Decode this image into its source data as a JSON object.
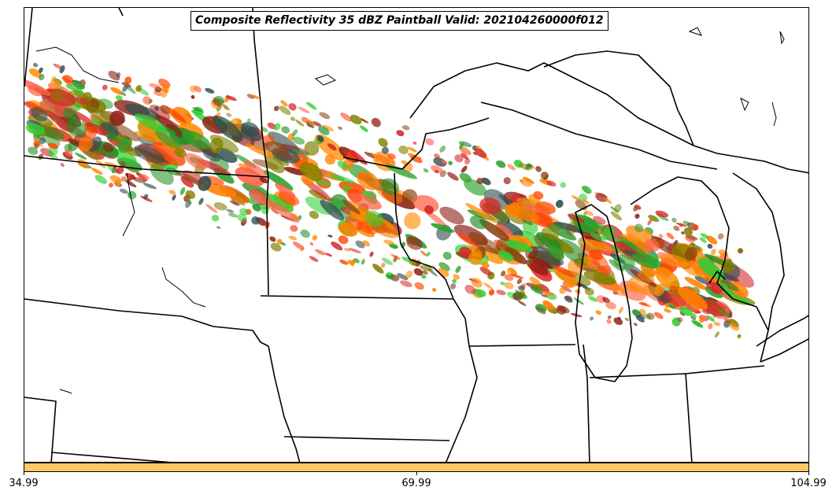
{
  "title": "Composite Reflectivity 35 dBZ Paintball Valid: 202104260000f012",
  "colorbar": {
    "color": "#ffc766",
    "ticks": [
      "34.99",
      "69.99",
      "104.99"
    ]
  },
  "paint_colors": [
    "#ff7f00",
    "#d62728",
    "#8c1c13",
    "#808000",
    "#2ca02c",
    "#32cd32",
    "#ff4500",
    "#228b22",
    "#2f4f4f",
    "#ff6347",
    "#8b4513",
    "#ff8c00"
  ],
  "map": {
    "background": "#ffffff",
    "border_color": "#000000"
  }
}
